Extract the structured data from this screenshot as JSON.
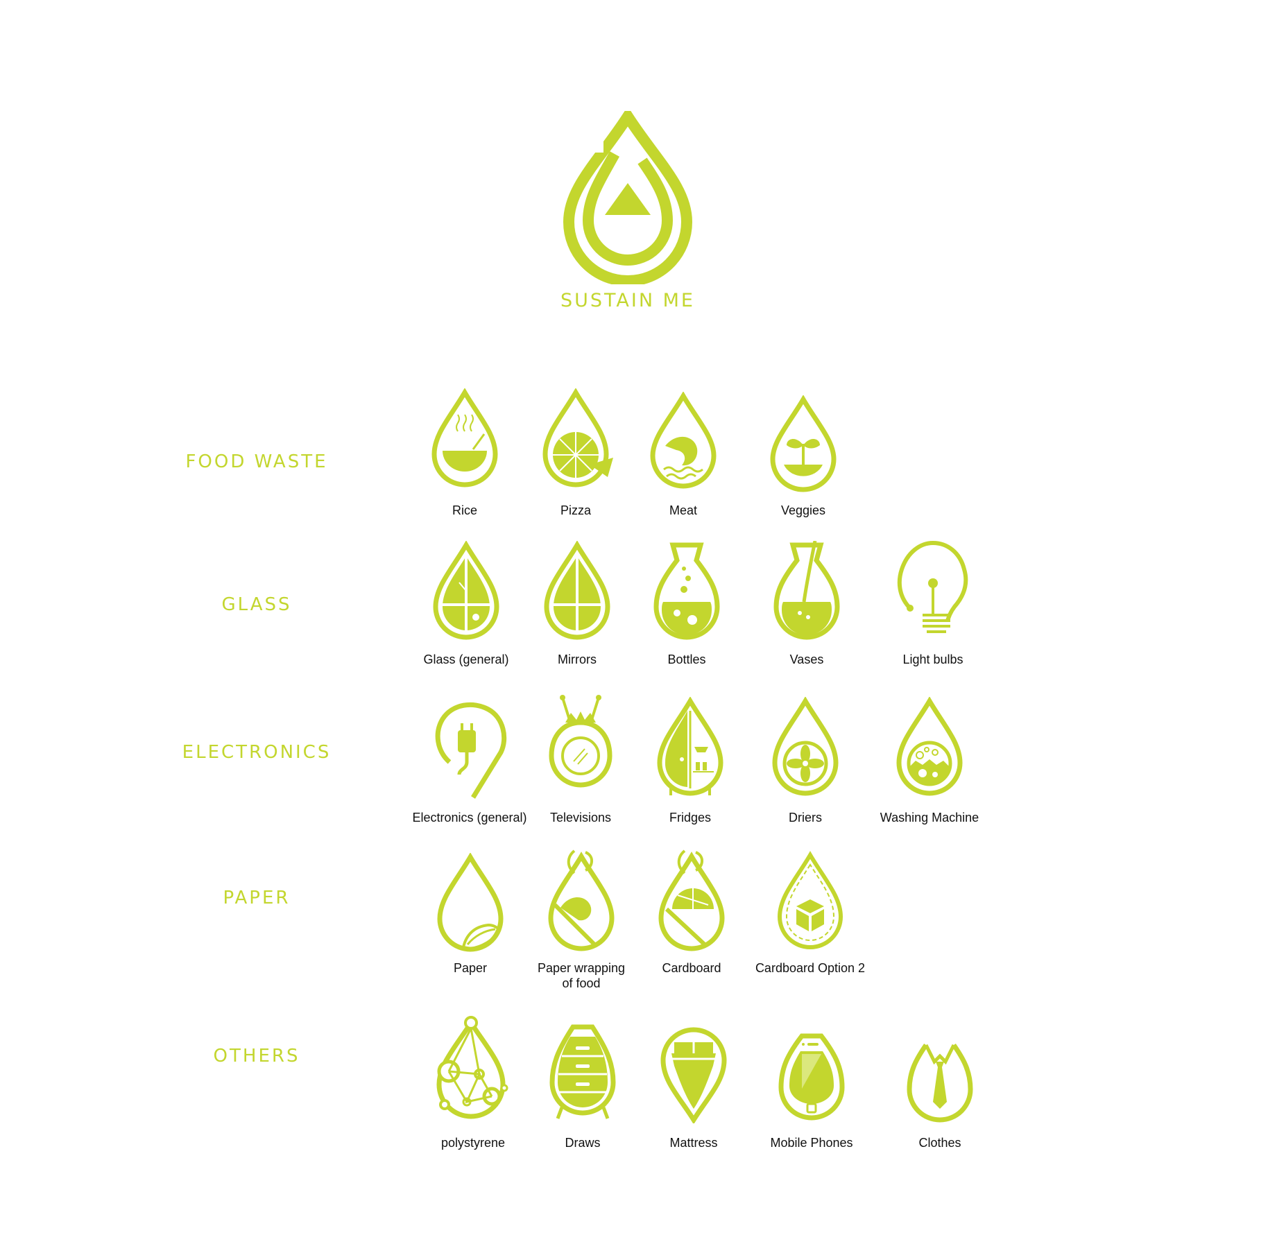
{
  "brand": {
    "name": "SUSTAIN ME",
    "color": "#c3d62e"
  },
  "categories": [
    {
      "label": "FOOD WASTE",
      "items": [
        {
          "label": "Rice",
          "icon": "rice-bowl-icon"
        },
        {
          "label": "Pizza",
          "icon": "pizza-icon"
        },
        {
          "label": "Meat",
          "icon": "fish-icon"
        },
        {
          "label": "Veggies",
          "icon": "sprout-icon"
        }
      ]
    },
    {
      "label": "GLASS",
      "items": [
        {
          "label": "Glass (general)",
          "icon": "window-icon"
        },
        {
          "label": "Mirrors",
          "icon": "mirror-icon"
        },
        {
          "label": "Bottles",
          "icon": "bottle-icon"
        },
        {
          "label": "Vases",
          "icon": "vase-icon"
        },
        {
          "label": "Light bulbs",
          "icon": "light-bulb-icon"
        }
      ]
    },
    {
      "label": "ELECTRONICS",
      "items": [
        {
          "label": "Electronics (general)",
          "icon": "plug-icon"
        },
        {
          "label": "Televisions",
          "icon": "television-icon"
        },
        {
          "label": "Fridges",
          "icon": "fridge-icon"
        },
        {
          "label": "Driers",
          "icon": "fan-icon"
        },
        {
          "label": "Washing Machine",
          "icon": "washing-machine-icon"
        }
      ]
    },
    {
      "label": "PAPER",
      "items": [
        {
          "label": "Paper",
          "icon": "paper-icon"
        },
        {
          "label": "Paper wrapping\nof food",
          "icon": "food-wrap-icon"
        },
        {
          "label": "Cardboard",
          "icon": "cardboard-icon"
        },
        {
          "label": "Cardboard Option 2",
          "icon": "box-icon"
        }
      ]
    },
    {
      "label": "OTHERS",
      "items": [
        {
          "label": "polystyrene",
          "icon": "polystyrene-icon"
        },
        {
          "label": "Draws",
          "icon": "drawers-icon"
        },
        {
          "label": "Mattress",
          "icon": "mattress-icon"
        },
        {
          "label": "Mobile Phones",
          "icon": "mobile-phone-icon"
        },
        {
          "label": "Clothes",
          "icon": "shirt-icon"
        }
      ]
    }
  ]
}
